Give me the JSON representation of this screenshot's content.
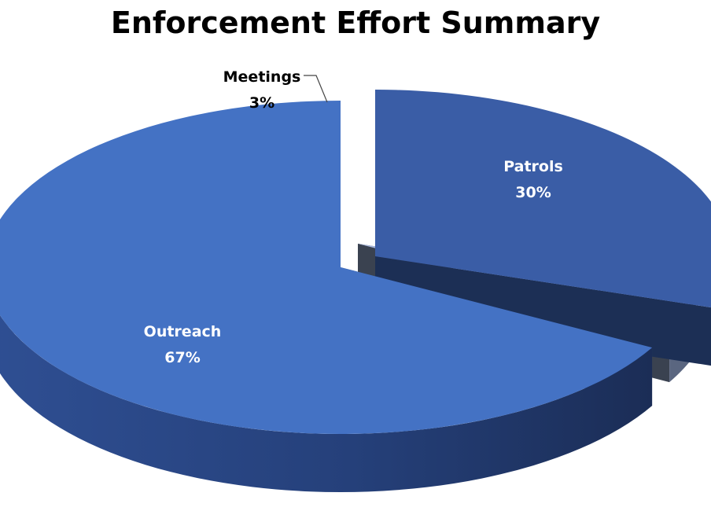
{
  "chart_data": {
    "type": "pie",
    "title": "Enforcement Effort Summary",
    "categories": [
      "Patrols",
      "Meetings",
      "Outreach"
    ],
    "values": [
      30,
      3,
      67
    ],
    "value_labels": [
      "30%",
      "3%",
      "67%"
    ],
    "colors": [
      "#3a5da6",
      "#a6b6dc",
      "#4472c4"
    ],
    "label_colors": [
      "#ffffff",
      "#000000",
      "#ffffff"
    ],
    "style": "3d-exploded"
  }
}
